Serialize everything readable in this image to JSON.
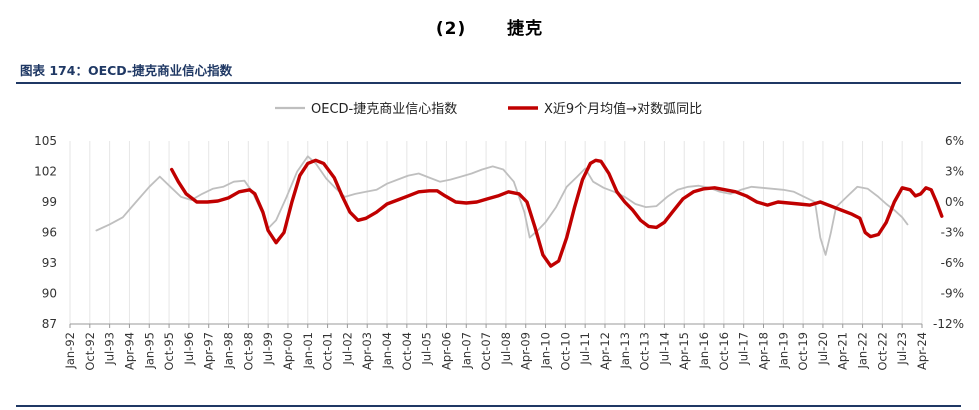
{
  "header": {
    "section_number": "(2)",
    "section_title": "捷克"
  },
  "figure_title": "图表 174：OECD-捷克商业信心指数",
  "chart_data": {
    "type": "line",
    "legend_position": "top",
    "grid": "vertical",
    "x_ticks": [
      "Jan-92",
      "Oct-92",
      "Jul-93",
      "Apr-94",
      "Jan-95",
      "Oct-95",
      "Jul-96",
      "Apr-97",
      "Jan-98",
      "Oct-98",
      "Jul-99",
      "Apr-00",
      "Jan-01",
      "Oct-01",
      "Jul-02",
      "Apr-03",
      "Jan-04",
      "Oct-04",
      "Jul-05",
      "Apr-06",
      "Jan-07",
      "Oct-07",
      "Jul-08",
      "Apr-09",
      "Jan-10",
      "Oct-10",
      "Jul-11",
      "Apr-12",
      "Jan-13",
      "Oct-13",
      "Jul-14",
      "Apr-15",
      "Jan-16",
      "Oct-16",
      "Jul-17",
      "Apr-18",
      "Jan-19",
      "Oct-19",
      "Jul-20",
      "Apr-21",
      "Jan-22",
      "Oct-22",
      "Jul-23",
      "Apr-24"
    ],
    "y_left": {
      "min": 87,
      "max": 105,
      "ticks": [
        "87",
        "90",
        "93",
        "96",
        "99",
        "102",
        "105"
      ]
    },
    "y_right": {
      "min": -12,
      "max": 6,
      "ticks": [
        "-12%",
        "-9%",
        "-6%",
        "-3%",
        "0%",
        "3%",
        "6%"
      ]
    },
    "series": [
      {
        "name": "OECD-捷克商业信心指数",
        "axis": "left",
        "color": "#bfbfbf",
        "points": [
          [
            1993.0,
            96.2
          ],
          [
            1993.5,
            96.8
          ],
          [
            1994.0,
            97.5
          ],
          [
            1994.5,
            99.0
          ],
          [
            1995.0,
            100.5
          ],
          [
            1995.4,
            101.5
          ],
          [
            1995.8,
            100.5
          ],
          [
            1996.2,
            99.5
          ],
          [
            1996.6,
            99.2
          ],
          [
            1997.0,
            99.8
          ],
          [
            1997.4,
            100.3
          ],
          [
            1997.8,
            100.5
          ],
          [
            1998.2,
            101.0
          ],
          [
            1998.6,
            101.1
          ],
          [
            1998.9,
            100.0
          ],
          [
            1999.3,
            97.8
          ],
          [
            1999.5,
            96.4
          ],
          [
            1999.8,
            97.2
          ],
          [
            2000.2,
            99.5
          ],
          [
            2000.6,
            102.0
          ],
          [
            2001.0,
            103.5
          ],
          [
            2001.3,
            102.8
          ],
          [
            2001.7,
            101.3
          ],
          [
            2002.0,
            100.5
          ],
          [
            2002.4,
            99.5
          ],
          [
            2002.8,
            99.8
          ],
          [
            2003.2,
            100.0
          ],
          [
            2003.6,
            100.2
          ],
          [
            2004.0,
            100.8
          ],
          [
            2004.4,
            101.2
          ],
          [
            2004.8,
            101.6
          ],
          [
            2005.2,
            101.8
          ],
          [
            2005.6,
            101.4
          ],
          [
            2006.0,
            101.0
          ],
          [
            2006.4,
            101.2
          ],
          [
            2006.8,
            101.5
          ],
          [
            2007.2,
            101.8
          ],
          [
            2007.6,
            102.2
          ],
          [
            2008.0,
            102.5
          ],
          [
            2008.4,
            102.2
          ],
          [
            2008.8,
            101.0
          ],
          [
            2009.2,
            98.0
          ],
          [
            2009.4,
            95.5
          ],
          [
            2009.7,
            96.2
          ],
          [
            2010.0,
            97.0
          ],
          [
            2010.4,
            98.5
          ],
          [
            2010.8,
            100.5
          ],
          [
            2011.2,
            101.5
          ],
          [
            2011.5,
            102.3
          ],
          [
            2011.8,
            101.0
          ],
          [
            2012.2,
            100.4
          ],
          [
            2012.6,
            100.0
          ],
          [
            2013.0,
            99.5
          ],
          [
            2013.4,
            98.8
          ],
          [
            2013.8,
            98.5
          ],
          [
            2014.2,
            98.6
          ],
          [
            2014.6,
            99.5
          ],
          [
            2015.0,
            100.2
          ],
          [
            2015.4,
            100.5
          ],
          [
            2015.8,
            100.6
          ],
          [
            2016.2,
            100.4
          ],
          [
            2016.6,
            100.0
          ],
          [
            2017.0,
            99.8
          ],
          [
            2017.4,
            100.2
          ],
          [
            2017.8,
            100.5
          ],
          [
            2018.2,
            100.4
          ],
          [
            2018.6,
            100.3
          ],
          [
            2019.0,
            100.2
          ],
          [
            2019.4,
            100.0
          ],
          [
            2019.8,
            99.5
          ],
          [
            2020.2,
            99.0
          ],
          [
            2020.4,
            95.5
          ],
          [
            2020.6,
            93.8
          ],
          [
            2020.8,
            96.0
          ],
          [
            2021.0,
            98.5
          ],
          [
            2021.4,
            99.5
          ],
          [
            2021.8,
            100.5
          ],
          [
            2022.2,
            100.3
          ],
          [
            2022.6,
            99.5
          ],
          [
            2022.9,
            98.8
          ],
          [
            2023.2,
            98.2
          ],
          [
            2023.5,
            97.5
          ],
          [
            2023.7,
            96.8
          ]
        ]
      },
      {
        "name": "X近9个月均值→对数弧同比",
        "axis": "right",
        "color": "#c00000",
        "points": [
          [
            1995.85,
            3.2
          ],
          [
            1996.1,
            2.0
          ],
          [
            1996.4,
            0.8
          ],
          [
            1996.8,
            0.0
          ],
          [
            1997.2,
            0.0
          ],
          [
            1997.6,
            0.1
          ],
          [
            1998.0,
            0.4
          ],
          [
            1998.4,
            1.0
          ],
          [
            1998.8,
            1.2
          ],
          [
            1999.0,
            0.8
          ],
          [
            1999.3,
            -1.0
          ],
          [
            1999.5,
            -2.8
          ],
          [
            1999.8,
            -4.0
          ],
          [
            2000.1,
            -3.0
          ],
          [
            2000.4,
            0.0
          ],
          [
            2000.7,
            2.6
          ],
          [
            2001.0,
            3.8
          ],
          [
            2001.3,
            4.1
          ],
          [
            2001.6,
            3.8
          ],
          [
            2002.0,
            2.4
          ],
          [
            2002.3,
            0.6
          ],
          [
            2002.6,
            -1.0
          ],
          [
            2002.9,
            -1.8
          ],
          [
            2003.2,
            -1.6
          ],
          [
            2003.6,
            -1.0
          ],
          [
            2004.0,
            -0.2
          ],
          [
            2004.4,
            0.2
          ],
          [
            2004.8,
            0.6
          ],
          [
            2005.2,
            1.0
          ],
          [
            2005.6,
            1.1
          ],
          [
            2005.9,
            1.1
          ],
          [
            2006.2,
            0.6
          ],
          [
            2006.6,
            0.0
          ],
          [
            2007.0,
            -0.1
          ],
          [
            2007.4,
            0.0
          ],
          [
            2007.8,
            0.3
          ],
          [
            2008.2,
            0.6
          ],
          [
            2008.6,
            1.0
          ],
          [
            2009.0,
            0.8
          ],
          [
            2009.3,
            0.0
          ],
          [
            2009.6,
            -2.5
          ],
          [
            2009.9,
            -5.2
          ],
          [
            2010.2,
            -6.3
          ],
          [
            2010.5,
            -5.8
          ],
          [
            2010.8,
            -3.5
          ],
          [
            2011.1,
            -0.5
          ],
          [
            2011.4,
            2.2
          ],
          [
            2011.7,
            3.8
          ],
          [
            2011.9,
            4.1
          ],
          [
            2012.1,
            4.0
          ],
          [
            2012.4,
            2.8
          ],
          [
            2012.7,
            1.0
          ],
          [
            2013.0,
            0.0
          ],
          [
            2013.3,
            -0.8
          ],
          [
            2013.6,
            -1.8
          ],
          [
            2013.9,
            -2.4
          ],
          [
            2014.2,
            -2.5
          ],
          [
            2014.5,
            -2.0
          ],
          [
            2014.8,
            -1.0
          ],
          [
            2015.2,
            0.3
          ],
          [
            2015.6,
            1.0
          ],
          [
            2016.0,
            1.3
          ],
          [
            2016.4,
            1.4
          ],
          [
            2016.8,
            1.2
          ],
          [
            2017.2,
            1.0
          ],
          [
            2017.6,
            0.6
          ],
          [
            2018.0,
            0.0
          ],
          [
            2018.4,
            -0.3
          ],
          [
            2018.8,
            0.0
          ],
          [
            2019.2,
            -0.1
          ],
          [
            2019.6,
            -0.2
          ],
          [
            2020.0,
            -0.3
          ],
          [
            2020.4,
            0.0
          ],
          [
            2020.8,
            -0.4
          ],
          [
            2021.2,
            -0.8
          ],
          [
            2021.6,
            -1.2
          ],
          [
            2021.9,
            -1.6
          ],
          [
            2022.1,
            -3.0
          ],
          [
            2022.3,
            -3.4
          ],
          [
            2022.6,
            -3.2
          ],
          [
            2022.9,
            -2.0
          ],
          [
            2023.2,
            0.0
          ],
          [
            2023.5,
            1.4
          ],
          [
            2023.8,
            1.2
          ],
          [
            2024.0,
            0.6
          ],
          [
            2024.2,
            0.8
          ],
          [
            2024.4,
            1.4
          ],
          [
            2024.6,
            1.2
          ],
          [
            2024.8,
            0.0
          ],
          [
            2025.0,
            -1.4
          ]
        ]
      }
    ]
  }
}
